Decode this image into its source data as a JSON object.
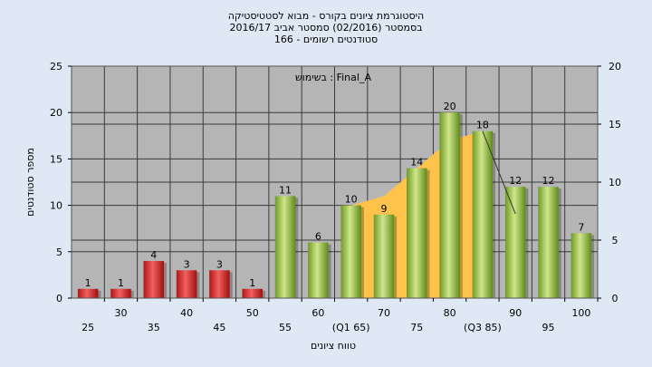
{
  "chart_data": {
    "type": "bar",
    "title_lines": [
      "היסטוגרמת ציונים בקורס - מבוא לסטטיסטיקה",
      "בסמסטר  (02/2016)  סמסטר אביב 2016/17",
      "סטודנטים רשומים - 166"
    ],
    "annotation": "בשימוש : Final_A",
    "xlabel": "טווח ציונים",
    "ylabel": "מספר סטודנטים",
    "ylim": [
      0,
      25
    ],
    "yticks": [
      0,
      5,
      10,
      15,
      20,
      25
    ],
    "y2lim": [
      0,
      20
    ],
    "y2ticks": [
      0,
      5,
      10,
      15,
      20
    ],
    "categories": [
      "25",
      "30",
      "35",
      "40",
      "45",
      "50",
      "55",
      "60",
      "(Q1 65)",
      "70",
      "75",
      "80",
      "(Q3 85)",
      "90",
      "95",
      "100"
    ],
    "values": [
      1,
      1,
      4,
      3,
      3,
      1,
      11,
      6,
      10,
      9,
      14,
      20,
      18,
      12,
      12,
      7
    ],
    "bar_colors": [
      "#d42a2a",
      "#d42a2a",
      "#d42a2a",
      "#d42a2a",
      "#d42a2a",
      "#d42a2a",
      "#8cb840",
      "#8cb840",
      "#8cb840",
      "#8cb840",
      "#8cb840",
      "#8cb840",
      "#8cb840",
      "#8cb840",
      "#8cb840",
      "#8cb840"
    ],
    "area": {
      "color": "#ffc24a",
      "x": [
        "(Q1 65)",
        "70",
        "75",
        "80",
        "(Q3 85)"
      ],
      "values": [
        10,
        11,
        14,
        17,
        18
      ]
    },
    "grid": true,
    "colors": {
      "background": "#dfe9f5",
      "plot": "#b5b5b5",
      "red": "#d42a2a",
      "green": "#8cb840",
      "area": "#ffc24a"
    }
  }
}
